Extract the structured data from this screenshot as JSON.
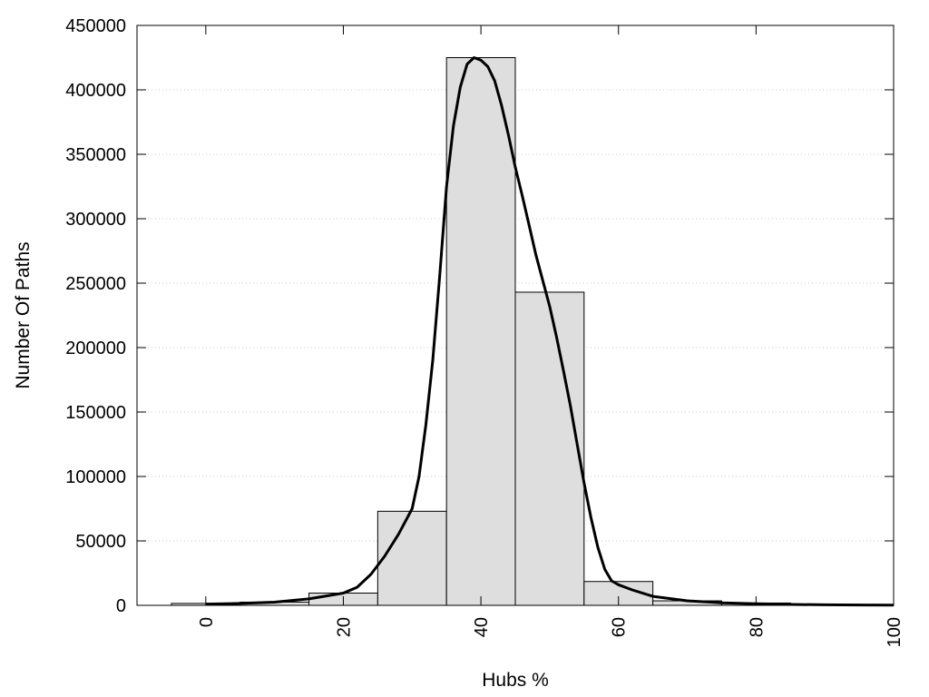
{
  "chart_data": {
    "type": "bar",
    "title": "",
    "xlabel": "Hubs %",
    "ylabel": "Number Of Paths",
    "xlim": [
      -10,
      100
    ],
    "ylim": [
      0,
      450000
    ],
    "grid": true,
    "legend": "none",
    "x_ticks": [
      0,
      20,
      40,
      60,
      80,
      100
    ],
    "y_ticks": [
      0,
      50000,
      100000,
      150000,
      200000,
      250000,
      300000,
      350000,
      400000,
      450000
    ],
    "bin_width": 10,
    "bins": [
      {
        "center": 0,
        "value": 1500
      },
      {
        "center": 10,
        "value": 2500
      },
      {
        "center": 20,
        "value": 9500
      },
      {
        "center": 30,
        "value": 73000
      },
      {
        "center": 40,
        "value": 425000
      },
      {
        "center": 50,
        "value": 243000
      },
      {
        "center": 60,
        "value": 18500
      },
      {
        "center": 70,
        "value": 3500
      },
      {
        "center": 80,
        "value": 1800
      },
      {
        "center": 90,
        "value": 800
      },
      {
        "center": 100,
        "value": 400
      }
    ],
    "curve": {
      "x": [
        0,
        5,
        10,
        15,
        20,
        22,
        24,
        26,
        28,
        30,
        31,
        32,
        33,
        34,
        35,
        36,
        37,
        38,
        39,
        40,
        41,
        42,
        43,
        44,
        45,
        46,
        47,
        48,
        49,
        50,
        51,
        52,
        53,
        54,
        55,
        56,
        57,
        58,
        59,
        60,
        62,
        65,
        70,
        75,
        80,
        85,
        90,
        95,
        100
      ],
      "y": [
        1000,
        1500,
        2500,
        5000,
        9500,
        14000,
        24000,
        38000,
        55000,
        75000,
        100000,
        140000,
        190000,
        255000,
        325000,
        372000,
        402000,
        420000,
        425000,
        423000,
        418000,
        407000,
        388000,
        365000,
        340000,
        318000,
        295000,
        272000,
        252000,
        232000,
        208000,
        182000,
        155000,
        125000,
        95000,
        68000,
        45000,
        28000,
        19000,
        16000,
        12000,
        7000,
        3500,
        2000,
        1200,
        700,
        400,
        250,
        150
      ]
    }
  },
  "colors": {
    "bar_fill": "#dedede",
    "bar_stroke": "#000000",
    "curve": "#000000",
    "grid": "#c8c8c8"
  }
}
